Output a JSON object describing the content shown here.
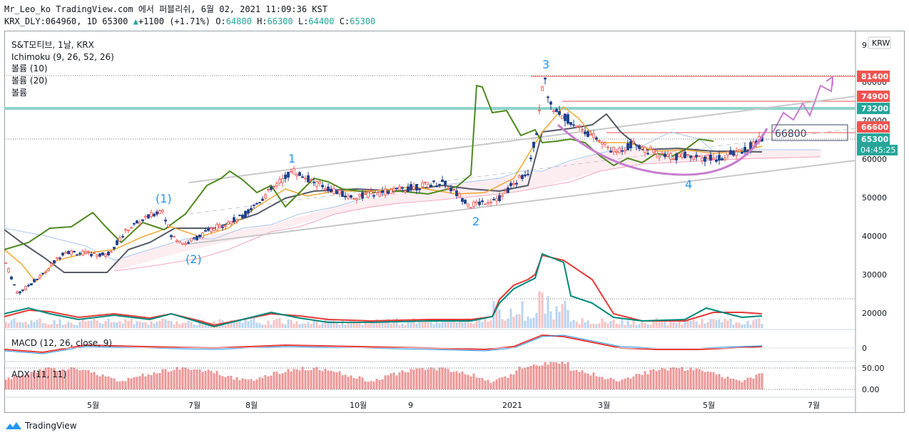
{
  "header": {
    "line1": "Mr_Leo_ko TradingView.com 에서 퍼블리쉬, 6월 02, 2021 11:09:36 KST",
    "symbol": "KRX_DLY:064960, 1D 65300",
    "change_arrow": "▲",
    "change": "+1100 (+1.71%)",
    "o_label": "O:",
    "o_val": "64800",
    "h_label": "H:",
    "h_val": "66300",
    "l_label": "L:",
    "l_val": "64400",
    "c_label": "C:",
    "c_val": "65300"
  },
  "legend": {
    "title": "S&T모티브, 1날, KRX",
    "ichimoku": "Ichimoku (9, 26, 52, 26)",
    "vol10": "볼륨 (10)",
    "vol20": "볼륨 (20)",
    "vol": "볼륨"
  },
  "panes": {
    "macd_label": "MACD (12, 26, close, 9)",
    "macd_tick": "0",
    "adx_label": "ADX (11, 11)",
    "adx_ticks": [
      "50.00",
      "0.00"
    ]
  },
  "currency_button": "KRW",
  "price_scale": {
    "ticks": [
      "20000",
      "30000",
      "40000",
      "50000",
      "60000",
      "70000",
      "80000"
    ],
    "top_partial": "9",
    "levels": [
      {
        "value": "81400",
        "color": "#ef5350"
      },
      {
        "value": "74900",
        "color": "#ef5350"
      },
      {
        "value": "73200",
        "color": "#26a69a"
      },
      {
        "value": "66600",
        "color": "#ef5350"
      },
      {
        "value": "65300",
        "color": "#26a69a"
      }
    ],
    "countdown": "04:45:25",
    "box_label": "66800"
  },
  "time_axis": [
    "5월",
    "7월",
    "8월",
    "10월",
    "9",
    "2021",
    "3월",
    "5월",
    "7월"
  ],
  "wave_labels": [
    "(1)",
    "(2)",
    "1",
    "2",
    "3",
    "4"
  ],
  "colors": {
    "up": "#26a69a",
    "down": "#ef5350",
    "accent": "#2196f3",
    "arc": "#c77dce"
  },
  "chart_data": {
    "type": "candlestick",
    "title": "S&T모티브, 1날, KRX",
    "ylim": [
      20000,
      90000
    ],
    "approx_path": [
      {
        "x": "2020-04",
        "y": 33000
      },
      {
        "x": "2020-04",
        "y": 25000
      },
      {
        "x": "2020-05",
        "y": 36000
      },
      {
        "x": "2020-06",
        "y": 47000
      },
      {
        "x": "2020-06",
        "y": 38000
      },
      {
        "x": "2020-08",
        "y": 45000
      },
      {
        "x": "2020-09",
        "y": 57000
      },
      {
        "x": "2020-11",
        "y": 52000
      },
      {
        "x": "2020-12",
        "y": 48000
      },
      {
        "x": "2021-01",
        "y": 57000
      },
      {
        "x": "2021-01",
        "y": 81400
      },
      {
        "x": "2021-02",
        "y": 73000
      },
      {
        "x": "2021-03",
        "y": 62000
      },
      {
        "x": "2021-04",
        "y": 60000
      },
      {
        "x": "2021-05",
        "y": 61000
      },
      {
        "x": "2021-06",
        "y": 65300
      }
    ]
  }
}
